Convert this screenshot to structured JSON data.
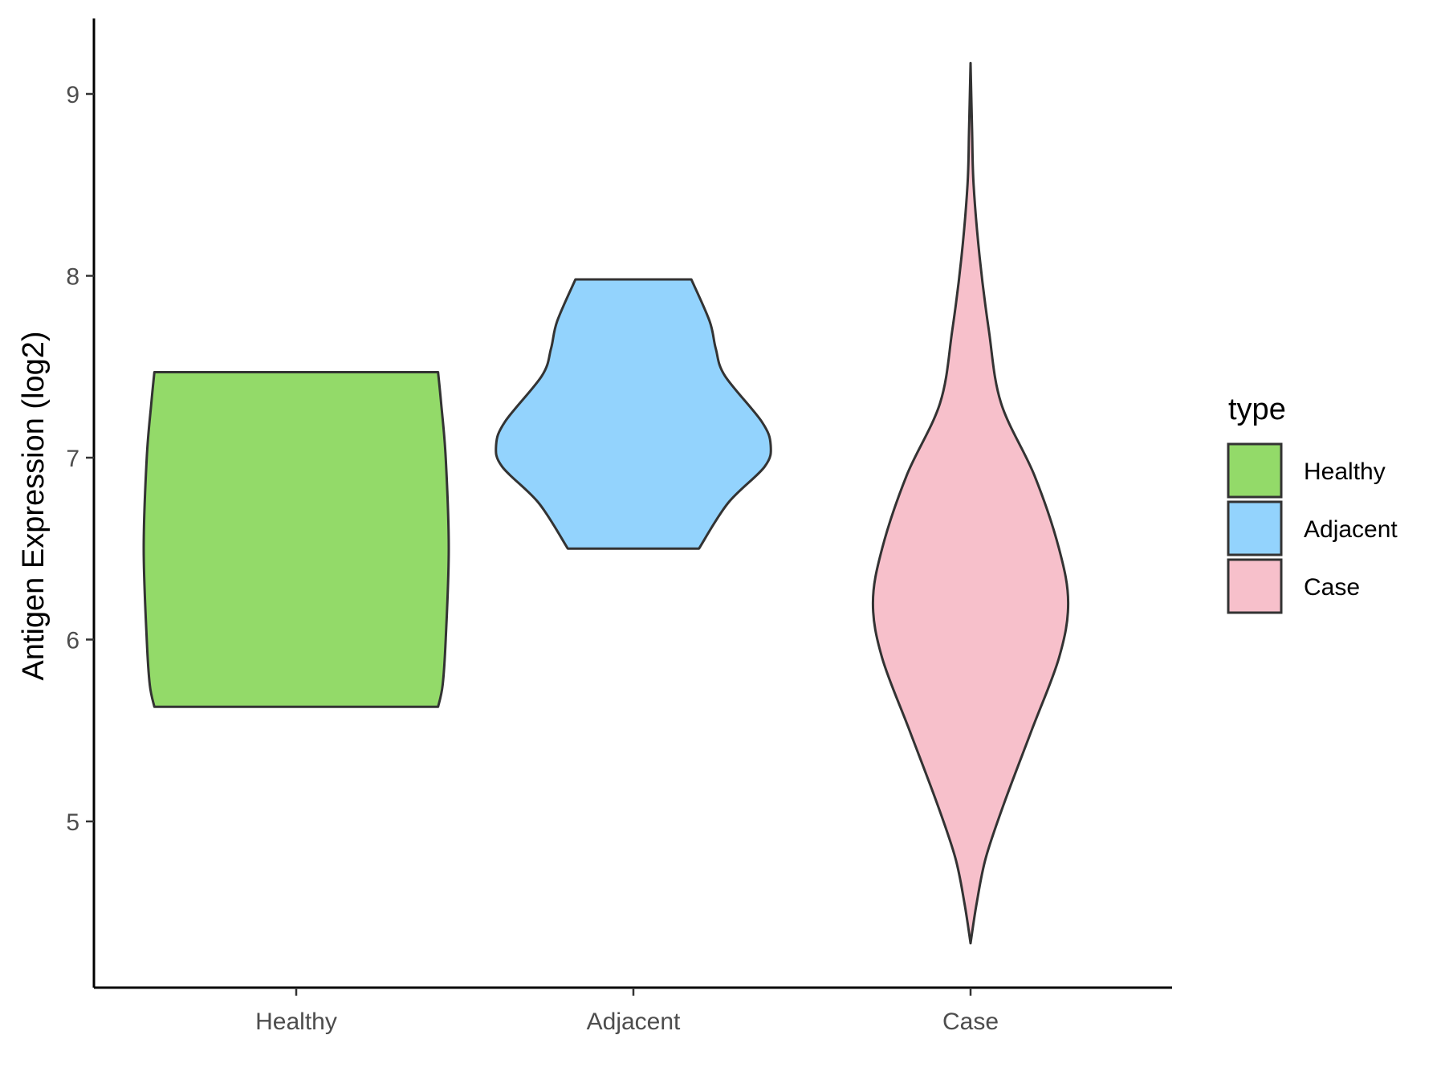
{
  "chart_data": {
    "type": "violin",
    "title": "",
    "xlabel": "",
    "ylabel": "Antigen Expression (log2)",
    "categories": [
      "Healthy",
      "Adjacent",
      "Case"
    ],
    "y_ticks": [
      5,
      6,
      7,
      8,
      9
    ],
    "ylim": [
      4.1,
      9.4
    ],
    "grid": false,
    "legend": {
      "title": "type",
      "placement": "right",
      "entries": [
        {
          "label": "Healthy",
          "color": "#93DA69"
        },
        {
          "label": "Adjacent",
          "color": "#93D3FD"
        },
        {
          "label": "Case",
          "color": "#F7C0CB"
        }
      ]
    },
    "series": [
      {
        "category": "Healthy",
        "color": "#93DA69",
        "min": 5.63,
        "max": 7.47,
        "density": [
          [
            5.63,
            0.93
          ],
          [
            5.75,
            0.96
          ],
          [
            6.0,
            0.98
          ],
          [
            6.5,
            1.0
          ],
          [
            7.0,
            0.98
          ],
          [
            7.3,
            0.95
          ],
          [
            7.47,
            0.93
          ]
        ]
      },
      {
        "category": "Adjacent",
        "color": "#93D3FD",
        "min": 6.5,
        "max": 7.98,
        "density": [
          [
            6.5,
            0.43
          ],
          [
            6.75,
            0.62
          ],
          [
            6.95,
            0.86
          ],
          [
            7.07,
            0.9
          ],
          [
            7.2,
            0.84
          ],
          [
            7.45,
            0.6
          ],
          [
            7.6,
            0.54
          ],
          [
            7.75,
            0.5
          ],
          [
            7.98,
            0.38
          ]
        ]
      },
      {
        "category": "Case",
        "color": "#F7C0CB",
        "min": 4.33,
        "max": 9.17,
        "density": [
          [
            4.33,
            0.0
          ],
          [
            4.55,
            0.04
          ],
          [
            4.8,
            0.1
          ],
          [
            5.1,
            0.22
          ],
          [
            5.5,
            0.4
          ],
          [
            5.9,
            0.58
          ],
          [
            6.2,
            0.64
          ],
          [
            6.5,
            0.58
          ],
          [
            6.9,
            0.42
          ],
          [
            7.3,
            0.2
          ],
          [
            7.7,
            0.12
          ],
          [
            8.1,
            0.06
          ],
          [
            8.5,
            0.02
          ],
          [
            8.8,
            0.01
          ],
          [
            9.17,
            0.0
          ]
        ]
      }
    ]
  }
}
